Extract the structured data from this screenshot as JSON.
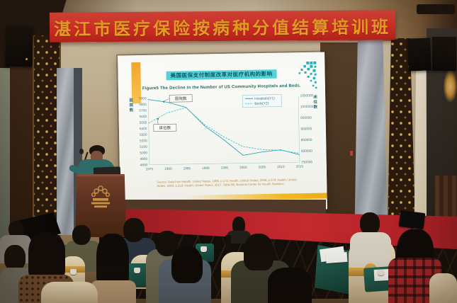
{
  "banner": {
    "text": "湛江市医疗保险按病种分值结算培训班"
  },
  "slide": {
    "title": "美国医保支付制度改革对医疗机构的影响",
    "subtitle": "Figure5 The Decline in the Number of US Community Hospitals and Beds.",
    "source": "Source: Data from Health, United States, 1995, p.173; Health, United States, 2005, p.370; Health, United States, 2002, p.219; Health, United States, 2017, Table 89, National Center for Health Statistics."
  },
  "chart_data": {
    "type": "line",
    "title": "美国医保支付制度改革对医疗机构的影响",
    "subtitle": "Figure5 The Decline in the Number of US Community Hospitals and Beds.",
    "x": [
      1975,
      1980,
      1985,
      1990,
      1995,
      2000,
      2005,
      2010,
      2015
    ],
    "series": [
      {
        "name": "Hospitals(Y1)",
        "axis": "y1",
        "style": "solid",
        "values": [
          5880,
          5830,
          5740,
          5420,
          5190,
          4930,
          4980,
          5010,
          4925
        ]
      },
      {
        "name": "Beds(Y2)",
        "axis": "y2",
        "style": "dashed",
        "values": [
          938000,
          983000,
          1005000,
          925000,
          870000,
          825000,
          810000,
          805000,
          790000
        ]
      }
    ],
    "y1": {
      "label": "医院数",
      "min": 4800,
      "max": 5900,
      "ticks": [
        5900,
        5800,
        5700,
        5600,
        5500,
        5400,
        5300,
        5200,
        5100,
        5000,
        4900,
        4800
      ]
    },
    "y2": {
      "label": "床位数",
      "min": 750000,
      "max": 1050000,
      "ticks": [
        1050000,
        1000000,
        950000,
        900000,
        850000,
        800000,
        750000
      ]
    },
    "legend_position": "top-right",
    "annotations": [
      {
        "text": "医院数",
        "target": "hospitals-line"
      },
      {
        "text": "床位数",
        "target": "beds-line"
      }
    ],
    "line_color": "#2aa9b6",
    "dashed_color": "#3cc2c8",
    "grid": false
  }
}
